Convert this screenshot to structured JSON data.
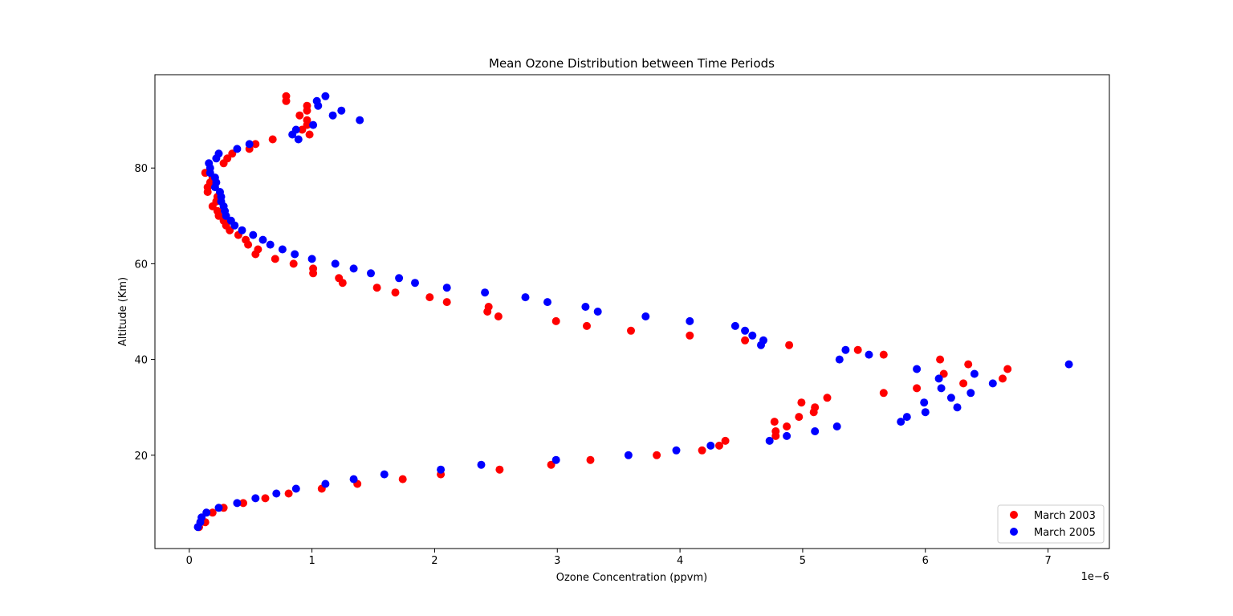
{
  "chart_data": {
    "type": "scatter",
    "title": "Mean Ozone Distribution between Time Periods",
    "xlabel": "Ozone Concentration (ppvm)",
    "ylabel": "Altitude (Km)",
    "x_offset_label": "1e−6",
    "x_scale": 1e-06,
    "xlim": [
      -0.28,
      7.5
    ],
    "ylim": [
      0.5,
      99.5
    ],
    "x_ticks": [
      0,
      1,
      2,
      3,
      4,
      5,
      6,
      7
    ],
    "x_tick_labels": [
      "0",
      "1",
      "2",
      "3",
      "4",
      "5",
      "6",
      "7"
    ],
    "y_ticks": [
      20,
      40,
      60,
      80
    ],
    "y_tick_labels": [
      "20",
      "40",
      "60",
      "80"
    ],
    "grid": false,
    "legend_placement": "bottom-right",
    "series": [
      {
        "name": "March 2003",
        "color": "#ff0000",
        "points": [
          [
            0.08,
            5
          ],
          [
            0.13,
            6
          ],
          [
            0.19,
            8
          ],
          [
            0.28,
            9
          ],
          [
            0.44,
            10
          ],
          [
            0.62,
            11
          ],
          [
            0.81,
            12
          ],
          [
            1.08,
            13
          ],
          [
            1.37,
            14
          ],
          [
            1.74,
            15
          ],
          [
            2.05,
            16
          ],
          [
            2.53,
            17
          ],
          [
            2.95,
            18
          ],
          [
            3.27,
            19
          ],
          [
            3.81,
            20
          ],
          [
            4.18,
            21
          ],
          [
            4.32,
            22
          ],
          [
            4.37,
            23
          ],
          [
            4.78,
            24
          ],
          [
            4.78,
            25
          ],
          [
            4.87,
            26
          ],
          [
            4.77,
            27
          ],
          [
            4.97,
            28
          ],
          [
            5.09,
            29
          ],
          [
            5.1,
            30
          ],
          [
            4.99,
            31
          ],
          [
            5.2,
            32
          ],
          [
            5.66,
            33
          ],
          [
            5.93,
            34
          ],
          [
            6.31,
            35
          ],
          [
            6.63,
            36
          ],
          [
            6.15,
            37
          ],
          [
            6.67,
            38
          ],
          [
            6.35,
            39
          ],
          [
            6.12,
            40
          ],
          [
            5.66,
            41
          ],
          [
            5.45,
            42
          ],
          [
            4.89,
            43
          ],
          [
            4.53,
            44
          ],
          [
            4.08,
            45
          ],
          [
            3.6,
            46
          ],
          [
            3.24,
            47
          ],
          [
            2.99,
            48
          ],
          [
            2.52,
            49
          ],
          [
            2.43,
            50
          ],
          [
            2.44,
            51
          ],
          [
            2.1,
            52
          ],
          [
            1.96,
            53
          ],
          [
            1.68,
            54
          ],
          [
            1.53,
            55
          ],
          [
            1.25,
            56
          ],
          [
            1.22,
            57
          ],
          [
            1.01,
            58
          ],
          [
            1.01,
            59
          ],
          [
            0.85,
            60
          ],
          [
            0.7,
            61
          ],
          [
            0.54,
            62
          ],
          [
            0.56,
            63
          ],
          [
            0.48,
            64
          ],
          [
            0.46,
            65
          ],
          [
            0.4,
            66
          ],
          [
            0.33,
            67
          ],
          [
            0.3,
            68
          ],
          [
            0.28,
            69
          ],
          [
            0.24,
            70
          ],
          [
            0.23,
            71
          ],
          [
            0.19,
            72
          ],
          [
            0.22,
            73
          ],
          [
            0.23,
            74
          ],
          [
            0.15,
            75
          ],
          [
            0.15,
            76
          ],
          [
            0.17,
            77
          ],
          [
            0.19,
            78
          ],
          [
            0.13,
            79
          ],
          [
            0.28,
            81
          ],
          [
            0.31,
            82
          ],
          [
            0.35,
            83
          ],
          [
            0.49,
            84
          ],
          [
            0.54,
            85
          ],
          [
            0.68,
            86
          ],
          [
            0.98,
            87
          ],
          [
            0.92,
            88
          ],
          [
            0.96,
            89
          ],
          [
            0.96,
            90
          ],
          [
            0.9,
            91
          ],
          [
            0.96,
            92
          ],
          [
            0.96,
            93
          ],
          [
            0.79,
            94
          ],
          [
            0.79,
            95
          ]
        ]
      },
      {
        "name": "March 2005",
        "color": "#0000ff",
        "points": [
          [
            0.07,
            5
          ],
          [
            0.09,
            6
          ],
          [
            0.1,
            7
          ],
          [
            0.14,
            8
          ],
          [
            0.24,
            9
          ],
          [
            0.39,
            10
          ],
          [
            0.54,
            11
          ],
          [
            0.71,
            12
          ],
          [
            0.87,
            13
          ],
          [
            1.11,
            14
          ],
          [
            1.34,
            15
          ],
          [
            1.59,
            16
          ],
          [
            2.05,
            17
          ],
          [
            2.38,
            18
          ],
          [
            2.99,
            19
          ],
          [
            3.58,
            20
          ],
          [
            3.97,
            21
          ],
          [
            4.25,
            22
          ],
          [
            4.73,
            23
          ],
          [
            4.87,
            24
          ],
          [
            5.1,
            25
          ],
          [
            5.28,
            26
          ],
          [
            5.8,
            27
          ],
          [
            5.85,
            28
          ],
          [
            6.0,
            29
          ],
          [
            6.26,
            30
          ],
          [
            5.99,
            31
          ],
          [
            6.21,
            32
          ],
          [
            6.37,
            33
          ],
          [
            6.13,
            34
          ],
          [
            6.55,
            35
          ],
          [
            6.11,
            36
          ],
          [
            6.4,
            37
          ],
          [
            5.93,
            38
          ],
          [
            7.17,
            39
          ],
          [
            5.3,
            40
          ],
          [
            5.54,
            41
          ],
          [
            5.35,
            42
          ],
          [
            4.66,
            43
          ],
          [
            4.68,
            44
          ],
          [
            4.59,
            45
          ],
          [
            4.53,
            46
          ],
          [
            4.45,
            47
          ],
          [
            4.08,
            48
          ],
          [
            3.72,
            49
          ],
          [
            3.33,
            50
          ],
          [
            3.23,
            51
          ],
          [
            2.92,
            52
          ],
          [
            2.74,
            53
          ],
          [
            2.41,
            54
          ],
          [
            2.1,
            55
          ],
          [
            1.84,
            56
          ],
          [
            1.71,
            57
          ],
          [
            1.48,
            58
          ],
          [
            1.34,
            59
          ],
          [
            1.19,
            60
          ],
          [
            1.0,
            61
          ],
          [
            0.86,
            62
          ],
          [
            0.76,
            63
          ],
          [
            0.66,
            64
          ],
          [
            0.6,
            65
          ],
          [
            0.52,
            66
          ],
          [
            0.43,
            67
          ],
          [
            0.37,
            68
          ],
          [
            0.34,
            69
          ],
          [
            0.3,
            70
          ],
          [
            0.29,
            71
          ],
          [
            0.28,
            72
          ],
          [
            0.26,
            73
          ],
          [
            0.26,
            74
          ],
          [
            0.25,
            75
          ],
          [
            0.21,
            76
          ],
          [
            0.22,
            77
          ],
          [
            0.21,
            78
          ],
          [
            0.17,
            79
          ],
          [
            0.17,
            80
          ],
          [
            0.16,
            81
          ],
          [
            0.22,
            82
          ],
          [
            0.24,
            83
          ],
          [
            0.39,
            84
          ],
          [
            0.49,
            85
          ],
          [
            0.89,
            86
          ],
          [
            0.84,
            87
          ],
          [
            0.87,
            88
          ],
          [
            1.01,
            89
          ],
          [
            1.39,
            90
          ],
          [
            1.17,
            91
          ],
          [
            1.24,
            92
          ],
          [
            1.05,
            93
          ],
          [
            1.04,
            94
          ],
          [
            1.11,
            95
          ]
        ]
      }
    ]
  }
}
